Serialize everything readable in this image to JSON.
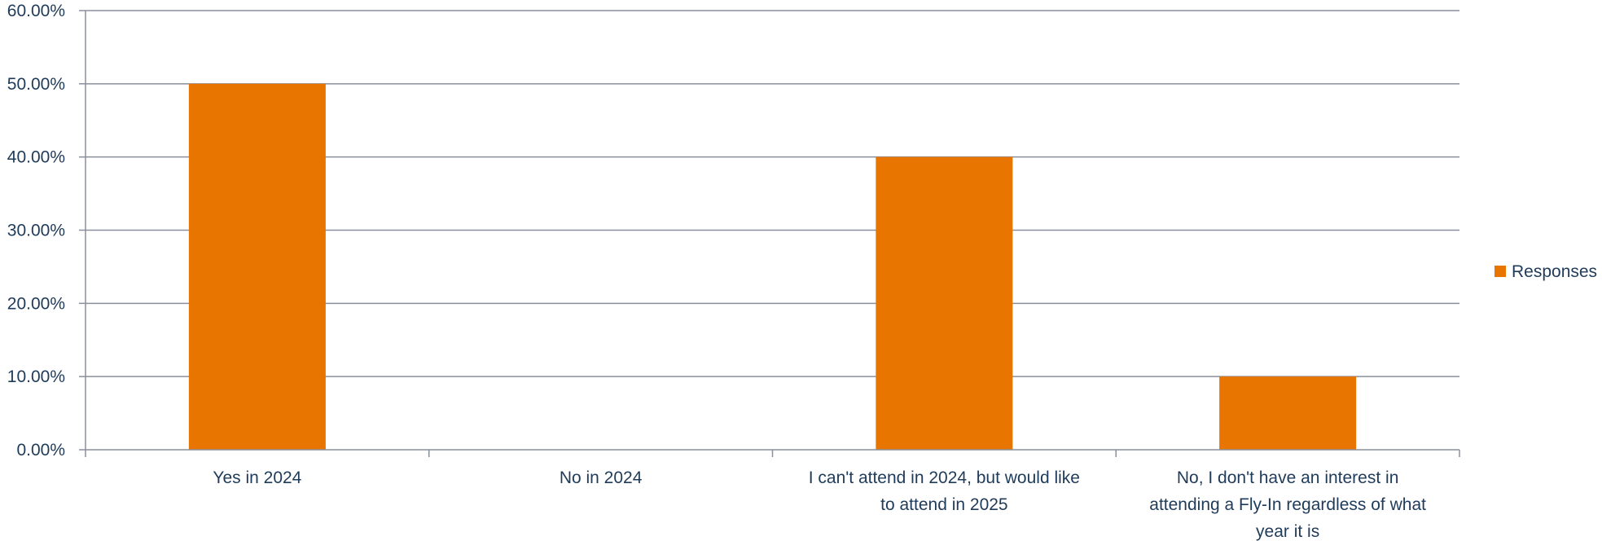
{
  "chart_data": {
    "type": "bar",
    "categories": [
      "Yes in 2024",
      "No in 2024",
      "I can't attend in 2024, but would like to attend in 2025",
      "No, I don't have an interest in attending a Fly-In regardless of what year it is"
    ],
    "category_lines": [
      [
        "Yes in 2024"
      ],
      [
        "No in 2024"
      ],
      [
        "I can't attend in 2024, but would like",
        "to attend in 2025"
      ],
      [
        "No, I don't have an interest in",
        "attending a Fly-In regardless of what",
        "year it is"
      ]
    ],
    "series": [
      {
        "name": "Responses",
        "values": [
          0.5,
          0.0,
          0.4,
          0.1
        ]
      }
    ],
    "ylim": [
      0,
      0.6
    ],
    "yticks": [
      0,
      0.1,
      0.2,
      0.3,
      0.4,
      0.5,
      0.6
    ],
    "ytick_labels": [
      "0.00%",
      "10.00%",
      "20.00%",
      "30.00%",
      "40.00%",
      "50.00%",
      "60.00%"
    ],
    "grid": true,
    "legend_position": "right",
    "colors": {
      "bar": "#E87500",
      "grid": "#8a8f9c",
      "text": "#1f3b5a"
    }
  }
}
